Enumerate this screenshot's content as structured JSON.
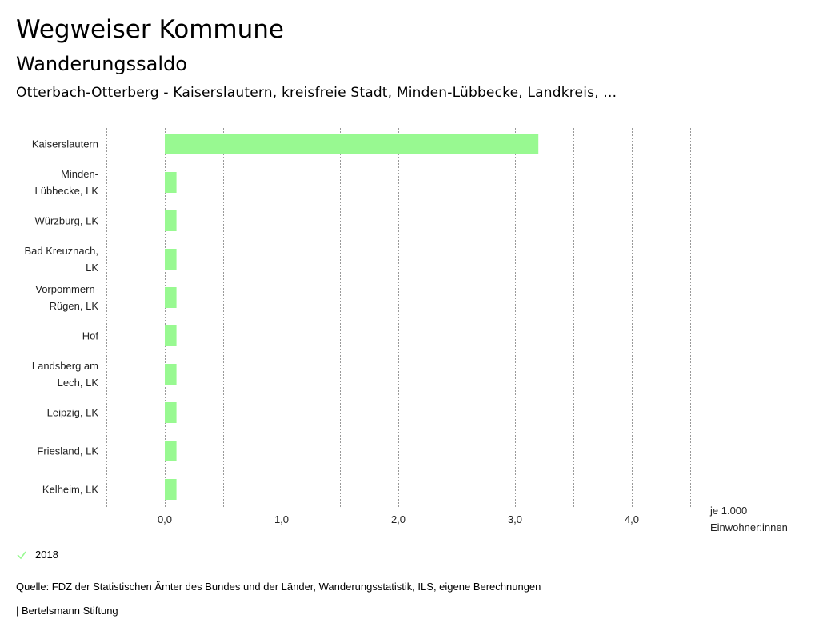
{
  "header": {
    "title": "Wegweiser Kommune",
    "subtitle": "Wanderungssaldo",
    "context": "Otterbach-Otterberg - Kaiserslautern, kreisfreie Stadt, Minden-Lübbecke, Landkreis, ..."
  },
  "colors": {
    "bar": "#98F991",
    "grid": "#999999"
  },
  "chart_data": {
    "type": "bar",
    "orientation": "horizontal",
    "categories": [
      [
        "Kaiserslautern"
      ],
      [
        "Minden-",
        "Lübbecke, LK"
      ],
      [
        "Würzburg, LK"
      ],
      [
        "Bad Kreuznach,",
        "LK"
      ],
      [
        "Vorpommern-",
        "Rügen, LK"
      ],
      [
        "Hof"
      ],
      [
        "Landsberg am",
        "Lech, LK"
      ],
      [
        "Leipzig, LK"
      ],
      [
        "Friesland, LK"
      ],
      [
        "Kelheim, LK"
      ]
    ],
    "series": [
      {
        "name": "2018",
        "values": [
          3.2,
          0.1,
          0.1,
          0.1,
          0.1,
          0.1,
          0.1,
          0.1,
          0.1,
          0.1
        ]
      }
    ],
    "xlim": [
      -0.5,
      4.5
    ],
    "ticks": [
      0,
      1,
      2,
      3,
      4
    ],
    "tick_labels": [
      "0,0",
      "1,0",
      "2,0",
      "3,0",
      "4,0"
    ],
    "unit_label": [
      "je 1.000",
      "Einwohner:innen"
    ],
    "grid": true,
    "legend_position": "bottom-left"
  },
  "legend": {
    "items": [
      {
        "label": "2018",
        "icon": "check-icon"
      }
    ]
  },
  "footer": {
    "source": "Quelle: FDZ der Statistischen Ämter des Bundes und der Länder, Wanderungsstatistik, ILS, eigene Berechnungen",
    "publisher": "| Bertelsmann Stiftung"
  }
}
